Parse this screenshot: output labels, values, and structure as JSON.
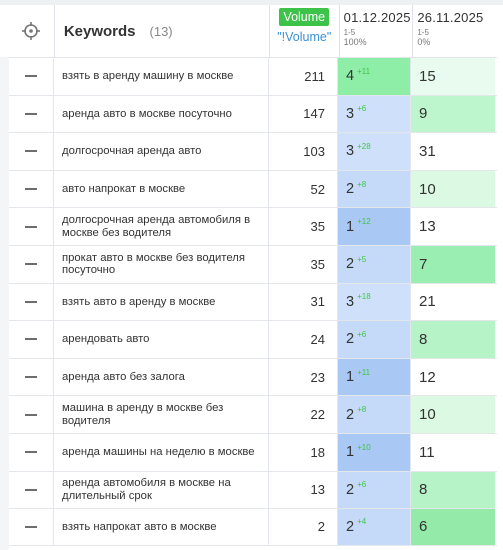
{
  "header": {
    "keywords_label": "Keywords",
    "keywords_count": "(13)",
    "volume_badge": "Volume",
    "volume_sub": "\"!Volume\"",
    "date1": "01.12.2025",
    "date1_range": "1-5",
    "date1_pct": "100%",
    "date2": "26.11.2025",
    "date2_range": "1-5",
    "date2_pct": "0%"
  },
  "colors": {
    "badge_green": "#3ec34a",
    "link_blue": "#3d8fd6"
  },
  "rows": [
    {
      "keyword": "взять в аренду машину в москве",
      "volume": "211",
      "pos1": "4",
      "delta1": "+11",
      "pos2": "15",
      "bg1": "#8eeea8",
      "bg2": "#e9fbee"
    },
    {
      "keyword": "аренда авто в москве посуточно",
      "volume": "147",
      "pos1": "3",
      "delta1": "+6",
      "pos2": "9",
      "bg1": "#cfe1fa",
      "bg2": "#bdf5cc"
    },
    {
      "keyword": "долгосрочная аренда авто",
      "volume": "103",
      "pos1": "3",
      "delta1": "+28",
      "pos2": "31",
      "bg1": "#cfe1fa",
      "bg2": "#ffffff"
    },
    {
      "keyword": "авто напрокат в москве",
      "volume": "52",
      "pos1": "2",
      "delta1": "+8",
      "pos2": "10",
      "bg1": "#c4daf8",
      "bg2": "#dcf9e4"
    },
    {
      "keyword": "долгосрочная аренда автомобиля в москве без водителя",
      "volume": "35",
      "pos1": "1",
      "delta1": "+12",
      "pos2": "13",
      "bg1": "#a9c9f4",
      "bg2": "#ffffff"
    },
    {
      "keyword": "прокат авто в москве без водителя посуточно",
      "volume": "35",
      "pos1": "2",
      "delta1": "+5",
      "pos2": "7",
      "bg1": "#c4daf8",
      "bg2": "#9aeeb2"
    },
    {
      "keyword": "взять авто в аренду в москве",
      "volume": "31",
      "pos1": "3",
      "delta1": "+18",
      "pos2": "21",
      "bg1": "#cfe1fa",
      "bg2": "#ffffff"
    },
    {
      "keyword": "арендовать авто",
      "volume": "24",
      "pos1": "2",
      "delta1": "+6",
      "pos2": "8",
      "bg1": "#c4daf8",
      "bg2": "#b6f3c6"
    },
    {
      "keyword": "аренда авто без залога",
      "volume": "23",
      "pos1": "1",
      "delta1": "+11",
      "pos2": "12",
      "bg1": "#a9c9f4",
      "bg2": "#ffffff"
    },
    {
      "keyword": "машина в аренду в москве без водителя",
      "volume": "22",
      "pos1": "2",
      "delta1": "+8",
      "pos2": "10",
      "bg1": "#c4daf8",
      "bg2": "#dcf9e4"
    },
    {
      "keyword": "аренда машины на неделю в москве",
      "volume": "18",
      "pos1": "1",
      "delta1": "+10",
      "pos2": "11",
      "bg1": "#a9c9f4",
      "bg2": "#ffffff"
    },
    {
      "keyword": "аренда автомобиля в москве на длительный срок",
      "volume": "13",
      "pos1": "2",
      "delta1": "+6",
      "pos2": "8",
      "bg1": "#c4daf8",
      "bg2": "#b6f3c6"
    },
    {
      "keyword": "взять напрокат авто в москве",
      "volume": "2",
      "pos1": "2",
      "delta1": "+4",
      "pos2": "6",
      "bg1": "#c4daf8",
      "bg2": "#93eaa9"
    }
  ]
}
